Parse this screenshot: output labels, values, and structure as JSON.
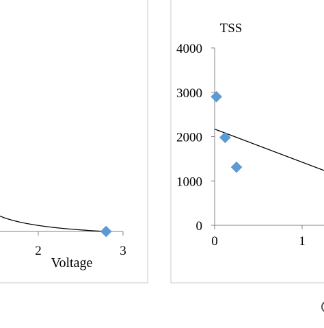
{
  "chart_data": [
    {
      "type": "scatter",
      "title": "",
      "xlabel": "Voltage",
      "ylabel": "",
      "x_ticks": [
        "2",
        "3"
      ],
      "xlim": [
        0,
        3
      ],
      "points": [
        {
          "x": 2.8,
          "y": 0
        }
      ],
      "trendline": [
        {
          "x": 0.5,
          "y": 0.08
        },
        {
          "x": 2.8,
          "y": 0
        }
      ],
      "marker_color": "#5B9BD5",
      "trendline_color": "#000000",
      "legend": "none",
      "grid": false
    },
    {
      "type": "scatter",
      "title": "TSS",
      "xlabel": "",
      "ylabel": "",
      "y_ticks": [
        "0",
        "1000",
        "2000",
        "3000",
        "4000"
      ],
      "x_ticks": [
        "0",
        "1"
      ],
      "ylim": [
        0,
        4000
      ],
      "xlim": [
        0,
        1.3
      ],
      "points": [
        {
          "x": 0.02,
          "y": 2900
        },
        {
          "x": 0.12,
          "y": 1980
        },
        {
          "x": 0.25,
          "y": 1310
        }
      ],
      "trendline": [
        {
          "x": 0,
          "y": 2170
        },
        {
          "x": 1.3,
          "y": 1200
        }
      ],
      "marker_color": "#5B9BD5",
      "trendline_color": "#000000",
      "legend": "none",
      "grid": false
    }
  ]
}
